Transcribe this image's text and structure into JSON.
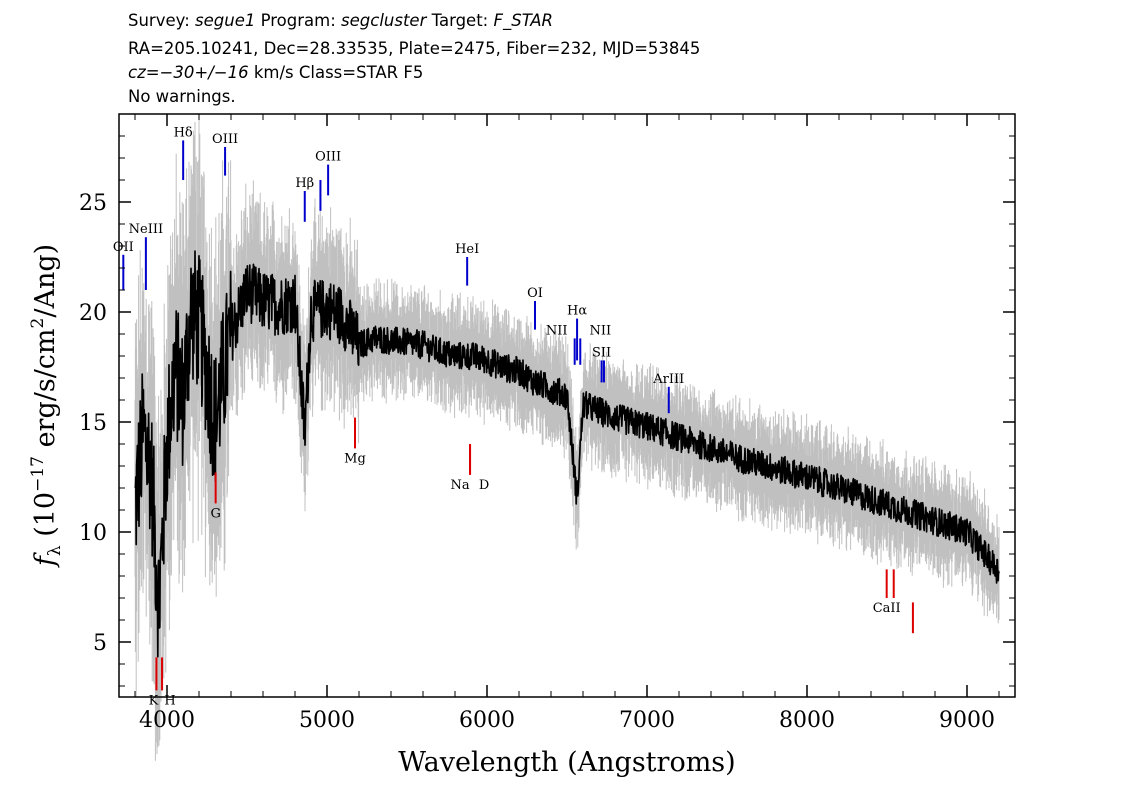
{
  "header": {
    "survey_label": "Survey:",
    "survey": "segue1",
    "program_label": "Program:",
    "program": "segcluster",
    "target_label": "Target:",
    "target": "F_STAR",
    "line2": "RA=205.10241, Dec=28.33535, Plate=2475, Fiber=232, MJD=53845",
    "cz": "cz=−30+/−16",
    "cz_rest": "km/s Class=STAR F5",
    "line4": "No warnings."
  },
  "chart_data": {
    "type": "line",
    "xlabel": "Wavelength (Angstroms)",
    "ylabel": "fλ (10⁻¹⁷ erg/s/cm²/Ang)",
    "xlim": [
      3700,
      9300
    ],
    "ylim": [
      2.5,
      29
    ],
    "xticks": [
      4000,
      5000,
      6000,
      7000,
      8000,
      9000
    ],
    "yticks": [
      5,
      10,
      15,
      20,
      25
    ],
    "grid": false,
    "colors": {
      "flux": "#000000",
      "error_band": "#c0c0c0",
      "emission": "#0000cc",
      "absorption": "#dd0000"
    },
    "series": [
      {
        "name": "flux",
        "x": [
          3800,
          3850,
          3900,
          3950,
          4000,
          4050,
          4100,
          4150,
          4200,
          4300,
          4400,
          4500,
          4600,
          4700,
          4800,
          4861,
          4900,
          5000,
          5100,
          5200,
          5300,
          5400,
          5500,
          5600,
          5700,
          5800,
          5900,
          6000,
          6100,
          6200,
          6300,
          6400,
          6500,
          6563,
          6600,
          6700,
          6800,
          6900,
          7000,
          7200,
          7400,
          7600,
          7800,
          8000,
          8200,
          8400,
          8600,
          8800,
          9000,
          9200
        ],
        "y": [
          11.0,
          14.5,
          13.0,
          6.5,
          14.0,
          17.5,
          16.0,
          20.0,
          19.5,
          15.0,
          19.0,
          21.0,
          20.5,
          20.3,
          20.5,
          14.5,
          20.0,
          20.2,
          19.8,
          18.5,
          18.8,
          18.7,
          18.6,
          18.5,
          18.2,
          18.0,
          18.0,
          17.8,
          17.5,
          17.3,
          16.8,
          16.5,
          16.2,
          11.5,
          15.8,
          15.5,
          15.2,
          15.0,
          14.8,
          14.3,
          13.8,
          13.3,
          12.9,
          12.5,
          12.0,
          11.5,
          11.0,
          10.5,
          10.0,
          8.2
        ]
      }
    ],
    "emission_lines": [
      {
        "label": "OII",
        "x": 3727,
        "y_low": 21.0,
        "y_high": 22.6
      },
      {
        "label": "NeIII",
        "x": 3868,
        "y_low": 21.0,
        "y_high": 23.4
      },
      {
        "label": "Hδ",
        "x": 4101,
        "y_low": 26.0,
        "y_high": 27.8
      },
      {
        "label": "OIII",
        "x": 4363,
        "y_low": 26.2,
        "y_high": 27.5
      },
      {
        "label": "Hβ",
        "x": 4861,
        "y_low": 24.1,
        "y_high": 25.5
      },
      {
        "label": "",
        "x": 4959,
        "y_low": 24.6,
        "y_high": 26.0
      },
      {
        "label": "OIII",
        "x": 5007,
        "y_low": 25.3,
        "y_high": 26.7
      },
      {
        "label": "HeI",
        "x": 5876,
        "y_low": 21.2,
        "y_high": 22.5
      },
      {
        "label": "OI",
        "x": 6300,
        "y_low": 19.2,
        "y_high": 20.5
      },
      {
        "label": "NII",
        "x": 6548,
        "y_low": 17.6,
        "y_high": 18.8
      },
      {
        "label": "Hα",
        "x": 6563,
        "y_low": 17.8,
        "y_high": 19.7
      },
      {
        "label": "NII",
        "x": 6583,
        "y_low": 17.6,
        "y_high": 18.8
      },
      {
        "label": "SII",
        "x": 6716,
        "y_low": 16.8,
        "y_high": 17.8
      },
      {
        "label": "",
        "x": 6731,
        "y_low": 16.8,
        "y_high": 17.8
      },
      {
        "label": "ArIII",
        "x": 7136,
        "y_low": 15.4,
        "y_high": 16.6
      }
    ],
    "absorption_lines": [
      {
        "label": "K",
        "x": 3934,
        "y_low": 2.8,
        "y_high": 4.3
      },
      {
        "label": "H",
        "x": 3969,
        "y_low": 2.8,
        "y_high": 4.3
      },
      {
        "label": "G",
        "x": 4304,
        "y_low": 11.3,
        "y_high": 12.7
      },
      {
        "label": "Mg",
        "x": 5175,
        "y_low": 13.8,
        "y_high": 15.2
      },
      {
        "label": "Na",
        "x": 5894,
        "y_low": 12.6,
        "y_high": 14.0
      },
      {
        "label": "D",
        "x": 5894,
        "y_low": 12.6,
        "y_high": 14.0
      },
      {
        "label": "CaII",
        "x": 8498,
        "y_low": 7.0,
        "y_high": 8.3
      },
      {
        "label": "",
        "x": 8542,
        "y_low": 7.0,
        "y_high": 8.3
      },
      {
        "label": "",
        "x": 8662,
        "y_low": 5.4,
        "y_high": 6.8
      }
    ]
  }
}
